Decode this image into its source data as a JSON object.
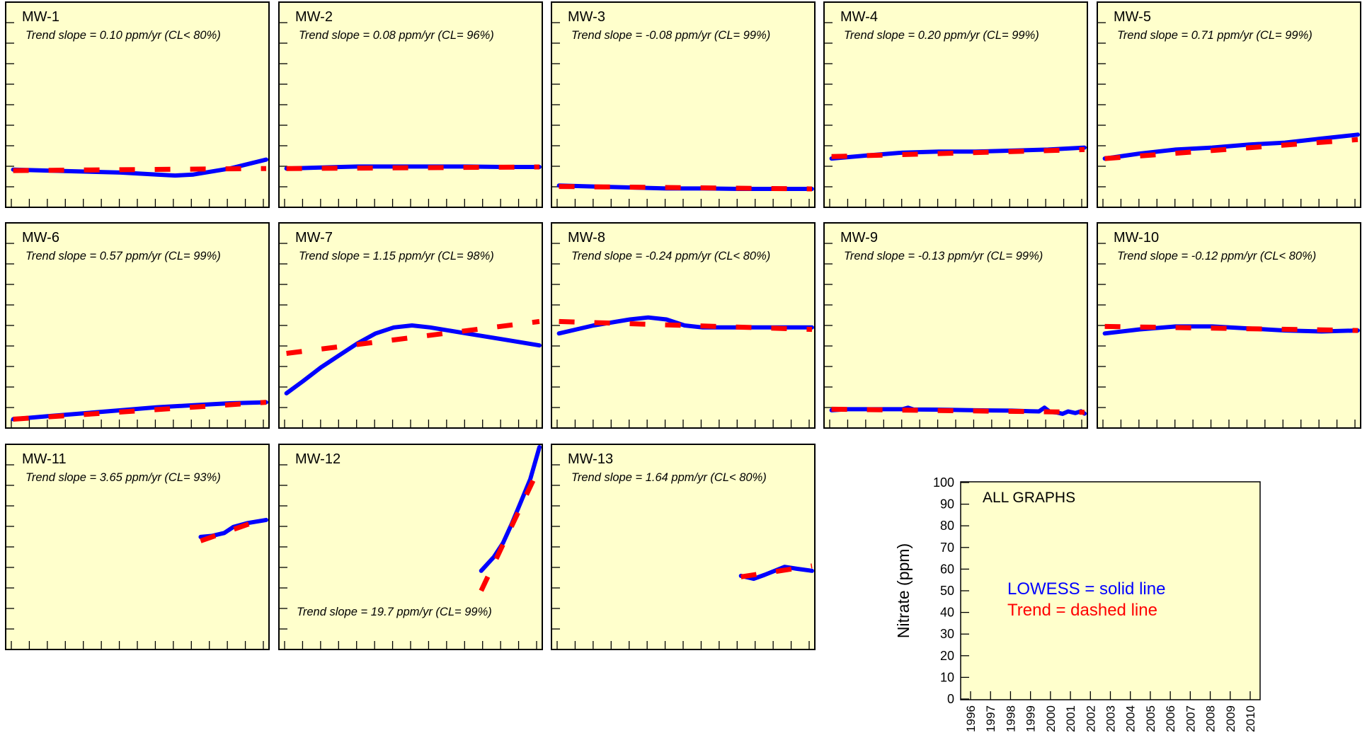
{
  "colors": {
    "panel_bg": "#ffffcc",
    "lowess": "#0000ff",
    "trend": "#ff0000",
    "frame": "#000000"
  },
  "chart_data": [
    {
      "type": "line",
      "title": "MW-1",
      "slope_text": "Trend slope = 0.10 ppm/yr  (CL< 80%)",
      "ylim": [
        0,
        100
      ],
      "xlim": [
        1996,
        2010
      ],
      "lowess": [
        [
          1996.1,
          17.5
        ],
        [
          1998,
          17
        ],
        [
          2000,
          16.5
        ],
        [
          2002,
          16
        ],
        [
          2004,
          15
        ],
        [
          2005,
          14.5
        ],
        [
          2006,
          15
        ],
        [
          2008,
          18
        ],
        [
          2010,
          22.5
        ]
      ],
      "trend": [
        [
          1996.1,
          17
        ],
        [
          2010,
          18
        ]
      ]
    },
    {
      "type": "line",
      "title": "MW-2",
      "slope_text": "Trend slope = 0.08 ppm/yr  (CL= 96%)",
      "ylim": [
        0,
        100
      ],
      "xlim": [
        1996,
        2010
      ],
      "lowess": [
        [
          1996.1,
          18
        ],
        [
          1998,
          18.5
        ],
        [
          2000,
          19
        ],
        [
          2002,
          19
        ],
        [
          2004,
          19
        ],
        [
          2006,
          19
        ],
        [
          2008,
          18.8
        ],
        [
          2010,
          18.8
        ]
      ],
      "trend": [
        [
          1996.1,
          18
        ],
        [
          2010,
          18.8
        ]
      ]
    },
    {
      "type": "line",
      "title": "MW-3",
      "slope_text": "Trend slope = -0.08 ppm/yr  (CL= 99%)",
      "ylim": [
        0,
        100
      ],
      "xlim": [
        1996,
        2010
      ],
      "lowess": [
        [
          1996.1,
          9.5
        ],
        [
          1998,
          9
        ],
        [
          2000,
          8.5
        ],
        [
          2002,
          8
        ],
        [
          2004,
          8
        ],
        [
          2006,
          7.8
        ],
        [
          2008,
          7.8
        ],
        [
          2010,
          7.8
        ]
      ],
      "trend": [
        [
          1996.1,
          9
        ],
        [
          2010,
          7.8
        ]
      ]
    },
    {
      "type": "line",
      "title": "MW-4",
      "slope_text": "Trend slope = 0.20 ppm/yr  (CL= 99%)",
      "ylim": [
        0,
        100
      ],
      "xlim": [
        1996,
        2010
      ],
      "lowess": [
        [
          1996.1,
          23
        ],
        [
          1998,
          24.5
        ],
        [
          2000,
          26
        ],
        [
          2002,
          26.5
        ],
        [
          2004,
          26.5
        ],
        [
          2006,
          27
        ],
        [
          2008,
          27.5
        ],
        [
          2010,
          28.5
        ]
      ],
      "trend": [
        [
          1996.1,
          24
        ],
        [
          2010,
          27.5
        ]
      ]
    },
    {
      "type": "line",
      "title": "MW-5",
      "slope_text": "Trend slope = 0.71 ppm/yr  (CL= 99%)",
      "ylim": [
        0,
        100
      ],
      "xlim": [
        1996,
        2010
      ],
      "lowess": [
        [
          1996.1,
          23
        ],
        [
          1998,
          25.5
        ],
        [
          2000,
          27.5
        ],
        [
          2002,
          28.5
        ],
        [
          2004,
          30
        ],
        [
          2006,
          31
        ],
        [
          2008,
          33
        ],
        [
          2010,
          35
        ]
      ],
      "trend": [
        [
          1996.1,
          23
        ],
        [
          2010,
          32.5
        ]
      ]
    },
    {
      "type": "line",
      "title": "MW-6",
      "slope_text": "Trend slope = 0.57 ppm/yr  (CL= 99%)",
      "ylim": [
        0,
        100
      ],
      "xlim": [
        1996,
        2010
      ],
      "lowess": [
        [
          1996.1,
          3
        ],
        [
          1998,
          4.5
        ],
        [
          2000,
          6
        ],
        [
          2002,
          7.5
        ],
        [
          2004,
          9
        ],
        [
          2006,
          10
        ],
        [
          2008,
          11
        ],
        [
          2010,
          11.5
        ]
      ],
      "trend": [
        [
          1996.1,
          3
        ],
        [
          2010,
          11.5
        ]
      ]
    },
    {
      "type": "line",
      "title": "MW-7",
      "slope_text": "Trend slope = 1.15 ppm/yr  (CL= 98%)",
      "ylim": [
        0,
        100
      ],
      "xlim": [
        1996,
        2010
      ],
      "lowess": [
        [
          1996.1,
          16
        ],
        [
          1997,
          22
        ],
        [
          1998,
          29
        ],
        [
          1999,
          35
        ],
        [
          2000,
          41
        ],
        [
          2001,
          46
        ],
        [
          2002,
          49
        ],
        [
          2003,
          50
        ],
        [
          2004,
          49
        ],
        [
          2006,
          46
        ],
        [
          2008,
          43
        ],
        [
          2010,
          40
        ]
      ],
      "trend": [
        [
          1996.1,
          36
        ],
        [
          2010,
          52
        ]
      ]
    },
    {
      "type": "line",
      "title": "MW-8",
      "slope_text": "Trend slope = -0.24 ppm/yr  (CL< 80%)",
      "ylim": [
        0,
        100
      ],
      "xlim": [
        1996,
        2010
      ],
      "lowess": [
        [
          1996.1,
          46
        ],
        [
          1998,
          50
        ],
        [
          2000,
          53
        ],
        [
          2001,
          54
        ],
        [
          2002,
          53
        ],
        [
          2003,
          50
        ],
        [
          2004,
          49
        ],
        [
          2006,
          49
        ],
        [
          2008,
          49
        ],
        [
          2010,
          49
        ]
      ],
      "trend": [
        [
          1996.1,
          52
        ],
        [
          2010,
          48
        ]
      ]
    },
    {
      "type": "line",
      "title": "MW-9",
      "slope_text": "Trend slope = -0.13 ppm/yr  (CL= 99%)",
      "ylim": [
        0,
        100
      ],
      "xlim": [
        1996,
        2010
      ],
      "lowess": [
        [
          1996.1,
          7.5
        ],
        [
          1997,
          8
        ],
        [
          1998,
          8
        ],
        [
          2000,
          8
        ],
        [
          2000.3,
          8.8
        ],
        [
          2000.6,
          7.9
        ],
        [
          2002,
          7.8
        ],
        [
          2004,
          7.5
        ],
        [
          2006,
          7.3
        ],
        [
          2007,
          7
        ],
        [
          2007.5,
          6.9
        ],
        [
          2007.8,
          8.8
        ],
        [
          2008.1,
          6.7
        ],
        [
          2008.5,
          6.3
        ],
        [
          2008.8,
          5.7
        ],
        [
          2009.1,
          6.9
        ],
        [
          2009.5,
          6.1
        ],
        [
          2009.8,
          7
        ],
        [
          2010,
          5.8
        ]
      ],
      "trend": [
        [
          1996.1,
          8
        ],
        [
          2010,
          6.5
        ]
      ]
    },
    {
      "type": "line",
      "title": "MW-10",
      "slope_text": "Trend slope = -0.12 ppm/yr  (CL< 80%)",
      "ylim": [
        0,
        100
      ],
      "xlim": [
        1996,
        2010
      ],
      "lowess": [
        [
          1996.1,
          46
        ],
        [
          1998,
          48
        ],
        [
          2000,
          49.5
        ],
        [
          2002,
          49.5
        ],
        [
          2004,
          48.5
        ],
        [
          2006,
          47.5
        ],
        [
          2008,
          47
        ],
        [
          2010,
          47.5
        ]
      ],
      "trend": [
        [
          1996.1,
          49.5
        ],
        [
          2010,
          47.5
        ]
      ]
    },
    {
      "type": "line",
      "title": "MW-11",
      "slope_text": "Trend slope = 3.65 ppm/yr  (CL= 93%)",
      "ylim": [
        0,
        100
      ],
      "xlim": [
        1996,
        2010
      ],
      "lowess": [
        [
          2006.4,
          55
        ],
        [
          2007,
          55.5
        ],
        [
          2007.7,
          57
        ],
        [
          2008.2,
          60
        ],
        [
          2009,
          62
        ],
        [
          2010,
          63.5
        ]
      ],
      "trend": [
        [
          2006.4,
          53
        ],
        [
          2010,
          64.5
        ]
      ]
    },
    {
      "type": "line",
      "title": "MW-12",
      "slope_text": "Trend slope = 19.7 ppm/yr  (CL= 99%)",
      "ylim": [
        0,
        100
      ],
      "xlim": [
        1996,
        2010
      ],
      "lowess": [
        [
          2006.8,
          38
        ],
        [
          2007.5,
          45
        ],
        [
          2008,
          52
        ],
        [
          2008.5,
          62
        ],
        [
          2009,
          73
        ],
        [
          2009.5,
          84
        ],
        [
          2010,
          100
        ]
      ],
      "trend": [
        [
          2006.8,
          28
        ],
        [
          2009.9,
          88
        ]
      ]
    },
    {
      "type": "line",
      "title": "MW-13",
      "slope_text": "Trend slope = 1.64 ppm/yr  (CL< 80%)",
      "ylim": [
        0,
        100
      ],
      "xlim": [
        1996,
        2010
      ],
      "lowess": [
        [
          2006.1,
          35.5
        ],
        [
          2006.8,
          34
        ],
        [
          2007.4,
          36
        ],
        [
          2008.5,
          40
        ],
        [
          2009.2,
          39
        ],
        [
          2010,
          38
        ]
      ],
      "trend": [
        [
          2006.1,
          35
        ],
        [
          2010,
          40.5
        ]
      ]
    }
  ],
  "key_panel": {
    "title": "ALL GRAPHS",
    "lowess_label": "LOWESS = solid line",
    "trend_label": "Trend = dashed line",
    "ylabel": "Nitrate (ppm)",
    "ylim": [
      0,
      100
    ],
    "y_ticks": [
      "0",
      "10",
      "20",
      "30",
      "40",
      "50",
      "60",
      "70",
      "80",
      "90",
      "100"
    ],
    "x_ticks": [
      "1996",
      "1997",
      "1998",
      "1999",
      "2000",
      "2001",
      "2002",
      "2003",
      "2004",
      "2005",
      "2006",
      "2007",
      "2008",
      "2009",
      "2010"
    ]
  }
}
